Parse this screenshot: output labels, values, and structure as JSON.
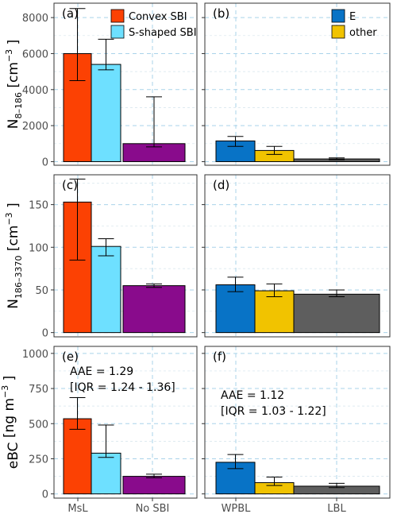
{
  "colors": {
    "convex": "#fc4103",
    "sshaped": "#6ee0ff",
    "nosbi": "#890b8c",
    "e": "#0873c6",
    "other": "#f1c300",
    "lbl": "#5e5e5e",
    "panel_border": "#333333",
    "grid_major": "#a9d3ea",
    "grid_minor": "#d4e4ec",
    "axis_text": "#4d4d4d"
  },
  "legends": {
    "left": [
      {
        "label": "Convex SBI",
        "color": "#fc4103"
      },
      {
        "label": "S-shaped SBI",
        "color": "#6ee0ff"
      }
    ],
    "right": [
      {
        "label": "E",
        "color": "#0873c6"
      },
      {
        "label": "other",
        "color": "#f1c300"
      }
    ]
  },
  "chart_data": [
    {
      "type": "bar",
      "panel": "(a)",
      "ylabel_main": "N",
      "ylabel_sub": "8–186",
      "ylabel_unit": "[cm",
      "ylabel_exp": "−3",
      "ylabel_close": "]",
      "ylim": [
        -200,
        8800
      ],
      "yticks": [
        0,
        2000,
        4000,
        6000,
        8000
      ],
      "categories": [
        "MsL",
        "No SBI"
      ],
      "bars": [
        {
          "series": "Convex SBI",
          "value": 6000,
          "err_low": 4500,
          "err_high": 8500,
          "color": "#fc4103"
        },
        {
          "series": "S-shaped SBI",
          "value": 5400,
          "err_low": 5100,
          "err_high": 6800,
          "color": "#6ee0ff"
        },
        {
          "series": "No SBI",
          "value": 1000,
          "err_low": 820,
          "err_high": 3600,
          "color": "#890b8c"
        }
      ]
    },
    {
      "type": "bar",
      "panel": "(b)",
      "ylim": [
        -200,
        8800
      ],
      "categories": [
        "WPBL",
        "LBL"
      ],
      "bars": [
        {
          "series": "E",
          "value": 1150,
          "err_low": 850,
          "err_high": 1400,
          "color": "#0873c6"
        },
        {
          "series": "other",
          "value": 620,
          "err_low": 400,
          "err_high": 850,
          "color": "#f1c300"
        },
        {
          "series": "LBL",
          "value": 150,
          "err_low": 110,
          "err_high": 210,
          "color": "#5e5e5e"
        }
      ]
    },
    {
      "type": "bar",
      "panel": "(c)",
      "ylabel_main": "N",
      "ylabel_sub": "186–3370",
      "ylabel_unit": "[cm",
      "ylabel_exp": "−3",
      "ylabel_close": "]",
      "ylim": [
        -5,
        185
      ],
      "yticks": [
        0,
        50,
        100,
        150
      ],
      "categories": [
        "MsL",
        "No SBI"
      ],
      "bars": [
        {
          "series": "Convex SBI",
          "value": 153,
          "err_low": 85,
          "err_high": 180,
          "color": "#fc4103"
        },
        {
          "series": "S-shaped SBI",
          "value": 101,
          "err_low": 90,
          "err_high": 110,
          "color": "#6ee0ff"
        },
        {
          "series": "No SBI",
          "value": 55,
          "err_low": 53,
          "err_high": 57,
          "color": "#890b8c"
        }
      ]
    },
    {
      "type": "bar",
      "panel": "(d)",
      "ylim": [
        -5,
        185
      ],
      "categories": [
        "WPBL",
        "LBL"
      ],
      "bars": [
        {
          "series": "E",
          "value": 56,
          "err_low": 48,
          "err_high": 65,
          "color": "#0873c6"
        },
        {
          "series": "other",
          "value": 49,
          "err_low": 42,
          "err_high": 57,
          "color": "#f1c300"
        },
        {
          "series": "LBL",
          "value": 45,
          "err_low": 42,
          "err_high": 50,
          "color": "#5e5e5e"
        }
      ]
    },
    {
      "type": "bar",
      "panel": "(e)",
      "ylabel_main": "eBC",
      "ylabel_sub": "",
      "ylabel_unit": "[ng m",
      "ylabel_exp": "−3",
      "ylabel_close": "]",
      "ylim": [
        -30,
        1050
      ],
      "yticks": [
        0,
        250,
        500,
        750,
        1000
      ],
      "categories": [
        "MsL",
        "No SBI"
      ],
      "annotation": [
        "AAE = 1.29",
        "[IQR = 1.24 - 1.36]"
      ],
      "bars": [
        {
          "series": "Convex SBI",
          "value": 535,
          "err_low": 460,
          "err_high": 685,
          "color": "#fc4103"
        },
        {
          "series": "S-shaped SBI",
          "value": 290,
          "err_low": 260,
          "err_high": 490,
          "color": "#6ee0ff"
        },
        {
          "series": "No SBI",
          "value": 125,
          "err_low": 115,
          "err_high": 140,
          "color": "#890b8c"
        }
      ]
    },
    {
      "type": "bar",
      "panel": "(f)",
      "ylim": [
        -30,
        1050
      ],
      "categories": [
        "WPBL",
        "LBL"
      ],
      "annotation": [
        "AAE = 1.12",
        "[IQR = 1.03 - 1.22]"
      ],
      "bars": [
        {
          "series": "E",
          "value": 225,
          "err_low": 180,
          "err_high": 280,
          "color": "#0873c6"
        },
        {
          "series": "other",
          "value": 80,
          "err_low": 60,
          "err_high": 120,
          "color": "#f1c300"
        },
        {
          "series": "LBL",
          "value": 55,
          "err_low": 45,
          "err_high": 75,
          "color": "#5e5e5e"
        }
      ]
    }
  ]
}
